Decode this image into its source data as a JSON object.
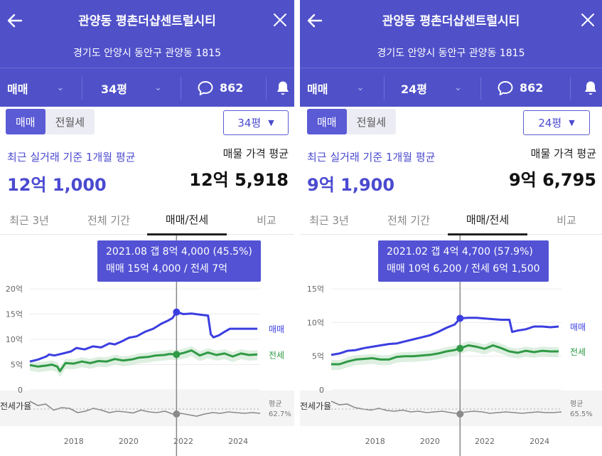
{
  "panels": [
    {
      "header": {
        "title": "관양동 평촌더샵센트럴시티",
        "address": "경기도 안양시 동안구 관양동 1815"
      },
      "subbar": {
        "trade_type": "매매",
        "size": "34평",
        "comment_count": "862"
      },
      "segment": {
        "options": [
          "매매",
          "전월세"
        ],
        "active": "매매"
      },
      "size_select": "34평",
      "summary": {
        "avg_caption": "최근 실거래 기준 1개월 평균",
        "avg_price": "12억 1,000",
        "listing_caption": "매물 가격 평균",
        "listing_price": "12억 5,918"
      },
      "tabs": [
        "최근 3년",
        "전체 기간",
        "매매/전세",
        "비교"
      ],
      "active_tab": "매매/전세",
      "tooltip": {
        "line1": "2021.08  갭 8억 4,000 (45.5%)",
        "line2": "매매 15억 4,000 / 전세 7억"
      },
      "chart_data": {
        "type": "line",
        "x_ticks": [
          "2018",
          "2020",
          "2022",
          "2024"
        ],
        "y_ticks": [
          "0",
          "5억",
          "10억",
          "15억",
          "20억"
        ],
        "ylim": [
          0,
          20
        ],
        "xlim": [
          2016.4,
          2024.8
        ],
        "series": [
          {
            "name": "매매",
            "color": "#3b3ee0",
            "x": [
              2016.4,
              2016.7,
              2017.0,
              2017.1,
              2017.3,
              2017.6,
              2017.9,
              2018.1,
              2018.4,
              2018.7,
              2019.0,
              2019.3,
              2019.5,
              2019.8,
              2020.0,
              2020.3,
              2020.6,
              2020.9,
              2021.2,
              2021.4,
              2021.6,
              2021.75,
              2022.0,
              2022.3,
              2022.6,
              2022.9,
              2023.0,
              2023.1,
              2023.3,
              2023.5,
              2023.7,
              2024.0,
              2024.3,
              2024.7
            ],
            "y": [
              5.6,
              6.0,
              6.6,
              7.0,
              6.8,
              7.2,
              7.6,
              8.3,
              8.0,
              8.6,
              8.4,
              9.2,
              9.0,
              9.7,
              10.3,
              10.6,
              11.5,
              12.1,
              13.1,
              13.6,
              14.2,
              15.4,
              15.0,
              15.1,
              14.9,
              14.7,
              11.0,
              10.4,
              10.8,
              11.5,
              12.1,
              12.1,
              12.1,
              12.1
            ]
          },
          {
            "name": "전세",
            "color": "#2f9a45",
            "x": [
              2016.4,
              2016.7,
              2017.0,
              2017.2,
              2017.4,
              2017.5,
              2017.7,
              2018.0,
              2018.3,
              2018.6,
              2018.9,
              2019.2,
              2019.5,
              2019.8,
              2020.1,
              2020.4,
              2020.7,
              2021.0,
              2021.3,
              2021.5,
              2021.75,
              2022.0,
              2022.3,
              2022.6,
              2022.9,
              2023.2,
              2023.5,
              2023.8,
              2024.1,
              2024.4,
              2024.7
            ],
            "y": [
              4.9,
              4.6,
              4.8,
              5.0,
              4.6,
              3.7,
              5.3,
              5.2,
              5.6,
              5.3,
              5.7,
              5.6,
              6.1,
              5.8,
              6.0,
              6.4,
              6.5,
              6.8,
              6.9,
              7.1,
              7.0,
              7.3,
              7.8,
              6.8,
              7.4,
              6.9,
              7.2,
              6.6,
              7.2,
              6.9,
              7.0
            ]
          }
        ],
        "jeonse_ratio_label": "전세가율",
        "jeonse_ratio_avg_caption": "평균",
        "jeonse_ratio_avg": "62.7%",
        "highlight": {
          "x": 2021.75,
          "sale": 15.4,
          "jeonse": 7.0
        }
      }
    },
    {
      "header": {
        "title": "관양동 평촌더샵센트럴시티",
        "address": "경기도 안양시 동안구 관양동 1815"
      },
      "subbar": {
        "trade_type": "매매",
        "size": "24평",
        "comment_count": "862"
      },
      "segment": {
        "options": [
          "매매",
          "전월세"
        ],
        "active": "매매"
      },
      "size_select": "24평",
      "summary": {
        "avg_caption": "최근 실거래 기준 1개월 평균",
        "avg_price": "9억 1,900",
        "listing_caption": "매물 가격 평균",
        "listing_price": "9억 6,795"
      },
      "tabs": [
        "최근 3년",
        "전체 기간",
        "매매/전세",
        "비교"
      ],
      "active_tab": "매매/전세",
      "tooltip": {
        "line1": "2021.02  갭 4억 4,700 (57.9%)",
        "line2": "매매 10억 6,200 / 전세 6억 1,500"
      },
      "chart_data": {
        "type": "line",
        "x_ticks": [
          "2018",
          "2020",
          "2022",
          "2024"
        ],
        "y_ticks": [
          "0",
          "5억",
          "10억",
          "15억"
        ],
        "ylim": [
          0,
          15
        ],
        "xlim": [
          2016.4,
          2024.8
        ],
        "series": [
          {
            "name": "매매",
            "color": "#3b3ee0",
            "x": [
              2016.4,
              2016.7,
              2017.0,
              2017.3,
              2017.6,
              2017.9,
              2018.2,
              2018.5,
              2018.8,
              2019.1,
              2019.4,
              2019.7,
              2020.0,
              2020.3,
              2020.6,
              2020.9,
              2021.1,
              2021.4,
              2021.7,
              2022.0,
              2022.3,
              2022.6,
              2022.9,
              2023.0,
              2023.2,
              2023.5,
              2023.8,
              2024.1,
              2024.4,
              2024.7
            ],
            "y": [
              5.2,
              5.4,
              5.8,
              5.9,
              6.2,
              6.4,
              6.6,
              6.8,
              6.9,
              7.2,
              7.5,
              7.8,
              8.1,
              8.6,
              9.2,
              9.7,
              10.62,
              10.7,
              10.7,
              10.6,
              10.5,
              10.4,
              10.4,
              8.6,
              8.8,
              9.0,
              9.4,
              9.4,
              9.3,
              9.4
            ]
          },
          {
            "name": "전세",
            "color": "#2f9a45",
            "x": [
              2016.4,
              2016.7,
              2017.0,
              2017.3,
              2017.6,
              2017.9,
              2018.2,
              2018.5,
              2018.8,
              2019.1,
              2019.4,
              2019.7,
              2020.0,
              2020.3,
              2020.6,
              2020.9,
              2021.1,
              2021.4,
              2021.7,
              2022.0,
              2022.3,
              2022.6,
              2022.9,
              2023.2,
              2023.5,
              2023.8,
              2024.1,
              2024.4,
              2024.7
            ],
            "y": [
              3.8,
              3.8,
              4.2,
              4.5,
              4.6,
              4.7,
              4.5,
              4.5,
              4.9,
              5.0,
              5.0,
              5.1,
              5.2,
              5.4,
              5.7,
              5.9,
              6.15,
              6.6,
              6.4,
              6.1,
              6.6,
              6.2,
              5.7,
              5.5,
              5.8,
              5.6,
              5.8,
              5.7,
              5.7
            ]
          }
        ],
        "jeonse_ratio_label": "전세가율",
        "jeonse_ratio_avg_caption": "평균",
        "jeonse_ratio_avg": "65.5%",
        "highlight": {
          "x": 2021.1,
          "sale": 10.62,
          "jeonse": 6.15
        }
      }
    }
  ],
  "colors": {
    "brand": "#5051c9",
    "accent": "#4a4ad0",
    "sale_line": "#3b3ee0",
    "jeonse_line": "#2f9a45",
    "ratio_line": "#8a8a8a"
  }
}
